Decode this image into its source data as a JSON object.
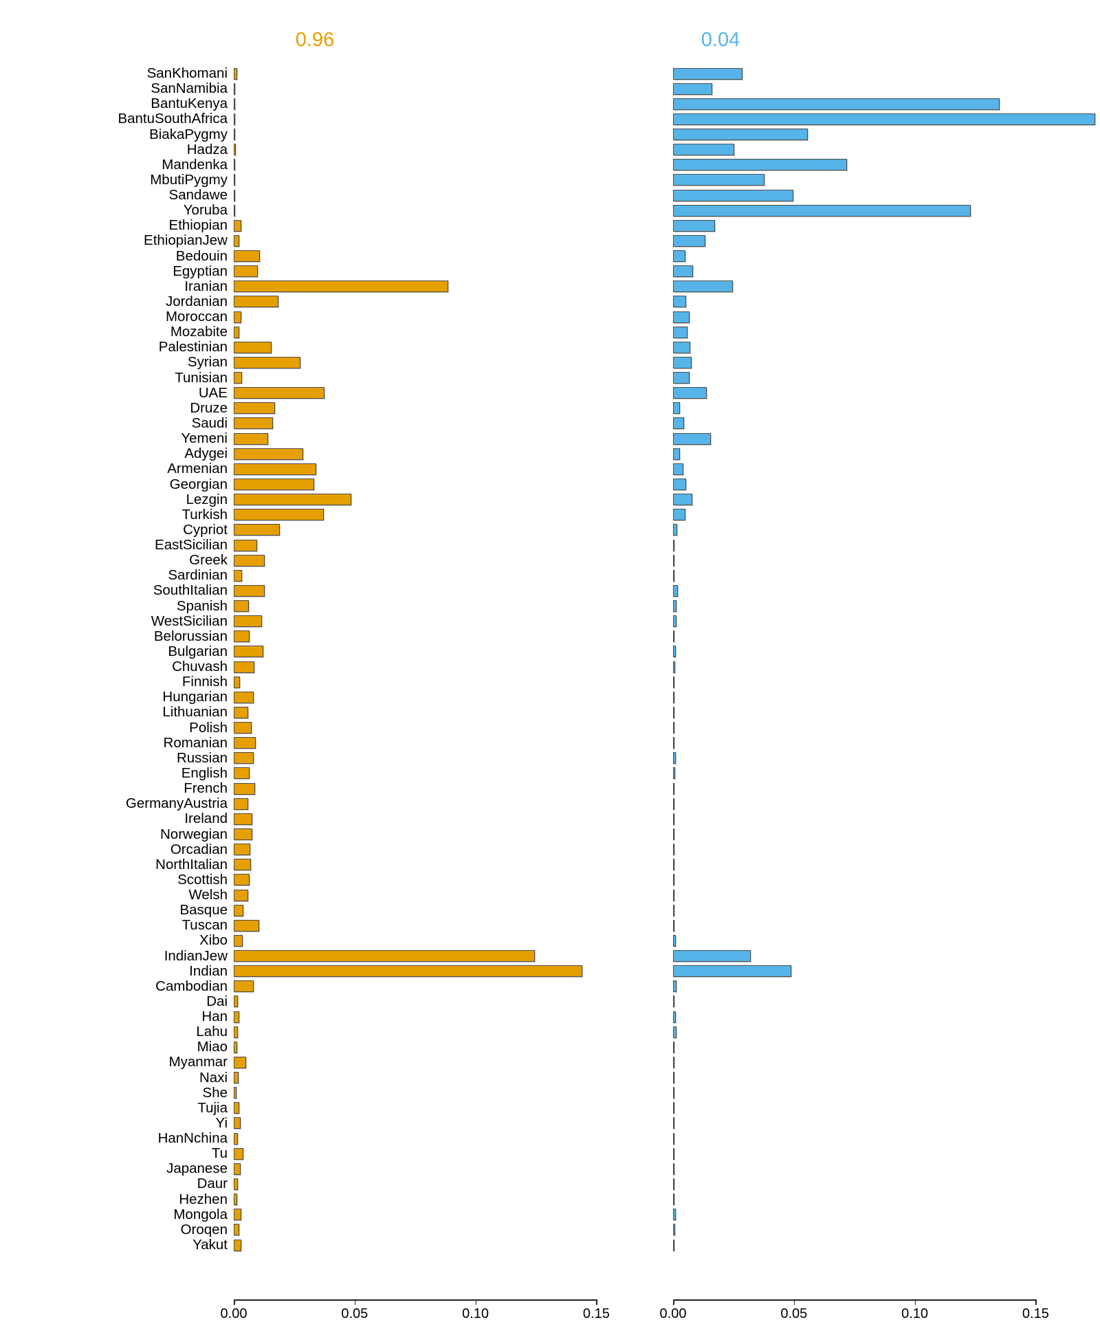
{
  "chart_data": {
    "type": "bar",
    "orientation": "horizontal",
    "title": "",
    "xlabel": "",
    "ylabel": "",
    "xlim": [
      0,
      0.15
    ],
    "grid": false,
    "xticks": [
      0,
      0.05,
      0.1,
      0.15
    ],
    "xtick_labels": [
      "0.00",
      "0.05",
      "0.10",
      "0.15"
    ],
    "categories": [
      "SanKhomani",
      "SanNamibia",
      "BantuKenya",
      "BantuSouthAfrica",
      "BiakaPygmy",
      "Hadza",
      "Mandenka",
      "MbutiPygmy",
      "Sandawe",
      "Yoruba",
      "Ethiopian",
      "EthiopianJew",
      "Bedouin",
      "Egyptian",
      "Iranian",
      "Jordanian",
      "Moroccan",
      "Mozabite",
      "Palestinian",
      "Syrian",
      "Tunisian",
      "UAE",
      "Druze",
      "Saudi",
      "Yemeni",
      "Adygei",
      "Armenian",
      "Georgian",
      "Lezgin",
      "Turkish",
      "Cypriot",
      "EastSicilian",
      "Greek",
      "Sardinian",
      "SouthItalian",
      "Spanish",
      "WestSicilian",
      "Belorussian",
      "Bulgarian",
      "Chuvash",
      "Finnish",
      "Hungarian",
      "Lithuanian",
      "Polish",
      "Romanian",
      "Russian",
      "English",
      "French",
      "GermanyAustria",
      "Ireland",
      "Norwegian",
      "Orcadian",
      "NorthItalian",
      "Scottish",
      "Welsh",
      "Basque",
      "Tuscan",
      "Xibo",
      "IndianJew",
      "Indian",
      "Cambodian",
      "Dai",
      "Han",
      "Lahu",
      "Miao",
      "Myanmar",
      "Naxi",
      "She",
      "Tujia",
      "Yi",
      "HanNchina",
      "Tu",
      "Japanese",
      "Daur",
      "Hezhen",
      "Mongola",
      "Oroqen",
      "Yakut"
    ],
    "series": [
      {
        "name": "0.96",
        "color": "#E69F00",
        "values": [
          0.0014,
          0.0003,
          0.0006,
          0.0006,
          0.0003,
          0.0009,
          0.0004,
          0.0004,
          0.0007,
          0.0004,
          0.0031,
          0.0023,
          0.0109,
          0.01,
          0.0888,
          0.0185,
          0.003,
          0.0022,
          0.0157,
          0.0276,
          0.0033,
          0.0376,
          0.0172,
          0.0162,
          0.0142,
          0.0287,
          0.0341,
          0.0333,
          0.0486,
          0.0372,
          0.0191,
          0.0098,
          0.0129,
          0.0034,
          0.0127,
          0.0063,
          0.0117,
          0.0065,
          0.0122,
          0.0085,
          0.0026,
          0.0083,
          0.0061,
          0.0073,
          0.0091,
          0.0083,
          0.0065,
          0.0089,
          0.0059,
          0.0077,
          0.0078,
          0.0069,
          0.0072,
          0.0066,
          0.006,
          0.0039,
          0.0104,
          0.0036,
          0.1245,
          0.1441,
          0.0083,
          0.0017,
          0.0024,
          0.0018,
          0.0015,
          0.005,
          0.0019,
          0.0011,
          0.0022,
          0.0028,
          0.0016,
          0.004,
          0.0028,
          0.0018,
          0.0014,
          0.0032,
          0.0024,
          0.0032
        ]
      },
      {
        "name": "0.04",
        "color": "#56B4E9",
        "values": [
          0.0286,
          0.0161,
          0.135,
          0.1745,
          0.0557,
          0.0253,
          0.0719,
          0.0378,
          0.0498,
          0.1232,
          0.0174,
          0.0135,
          0.005,
          0.0083,
          0.0247,
          0.0053,
          0.0068,
          0.006,
          0.0071,
          0.0076,
          0.0068,
          0.0139,
          0.0028,
          0.0046,
          0.0156,
          0.0029,
          0.0044,
          0.0053,
          0.0081,
          0.005,
          0.0017,
          0.0003,
          0.0005,
          0.0005,
          0.002,
          0.0015,
          0.0015,
          0.0003,
          0.001,
          0.0008,
          0.0003,
          0.0004,
          0.0005,
          0.0004,
          0.0005,
          0.001,
          0.0008,
          0.0004,
          0.0003,
          0.0005,
          0.0005,
          0.0004,
          0.0006,
          0.0004,
          0.0003,
          0.0004,
          0.0005,
          0.001,
          0.032,
          0.049,
          0.0015,
          0.0005,
          0.001,
          0.0015,
          0.0003,
          0.0005,
          0.0004,
          0.0003,
          0.0004,
          0.0004,
          0.0003,
          0.0005,
          0.0004,
          0.0004,
          0.0005,
          0.0012,
          0.0008,
          0.0005
        ]
      }
    ],
    "legend_position": "panel titles above each facet"
  }
}
